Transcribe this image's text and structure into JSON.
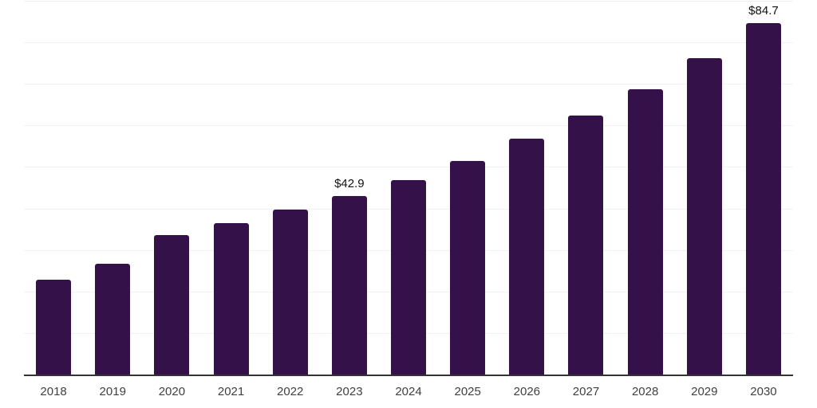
{
  "chart_data": {
    "type": "bar",
    "title": "",
    "xlabel": "",
    "ylabel": "",
    "categories": [
      "2018",
      "2019",
      "2020",
      "2021",
      "2022",
      "2023",
      "2024",
      "2025",
      "2026",
      "2027",
      "2028",
      "2029",
      "2030"
    ],
    "values": [
      22.8,
      26.7,
      33.6,
      36.5,
      39.7,
      42.9,
      46.9,
      51.5,
      56.8,
      62.4,
      68.7,
      76.2,
      84.7
    ],
    "point_labels": [
      "",
      "",
      "",
      "",
      "",
      "$42.9",
      "",
      "",
      "",
      "",
      "",
      "",
      "$84.7"
    ],
    "currency_prefix": "$",
    "ylim": [
      0,
      90
    ],
    "gridline_interval": 10,
    "grid": "horizontal",
    "y_tick_labels_visible": false,
    "legend_position": "none",
    "colors": {
      "bar": "#35114A",
      "gridline": "#F2F2F2",
      "axis_line": "#333333",
      "tick_label": "#404040",
      "value_label": "#111111",
      "background": "#FFFFFF"
    }
  }
}
